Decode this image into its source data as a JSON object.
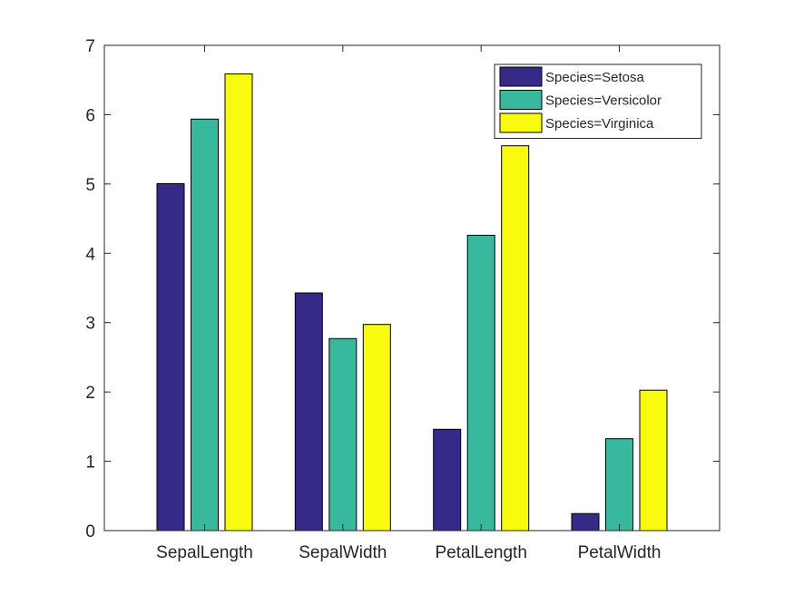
{
  "chart_data": {
    "type": "bar",
    "categories": [
      "SepalLength",
      "SepalWidth",
      "PetalLength",
      "PetalWidth"
    ],
    "series": [
      {
        "name": "Species=Setosa",
        "color": "#352a87",
        "values": [
          5.006,
          3.428,
          1.462,
          0.246
        ]
      },
      {
        "name": "Species=Versicolor",
        "color": "#38b99e",
        "values": [
          5.936,
          2.77,
          4.26,
          1.326
        ]
      },
      {
        "name": "Species=Virginica",
        "color": "#f9fb0e",
        "values": [
          6.588,
          2.974,
          5.552,
          2.026
        ]
      }
    ],
    "title": "",
    "xlabel": "",
    "ylabel": "",
    "ylim": [
      0,
      7
    ],
    "yticks": [
      0,
      1,
      2,
      3,
      4,
      5,
      6,
      7
    ],
    "grid": false,
    "legend_position": "top-right"
  }
}
